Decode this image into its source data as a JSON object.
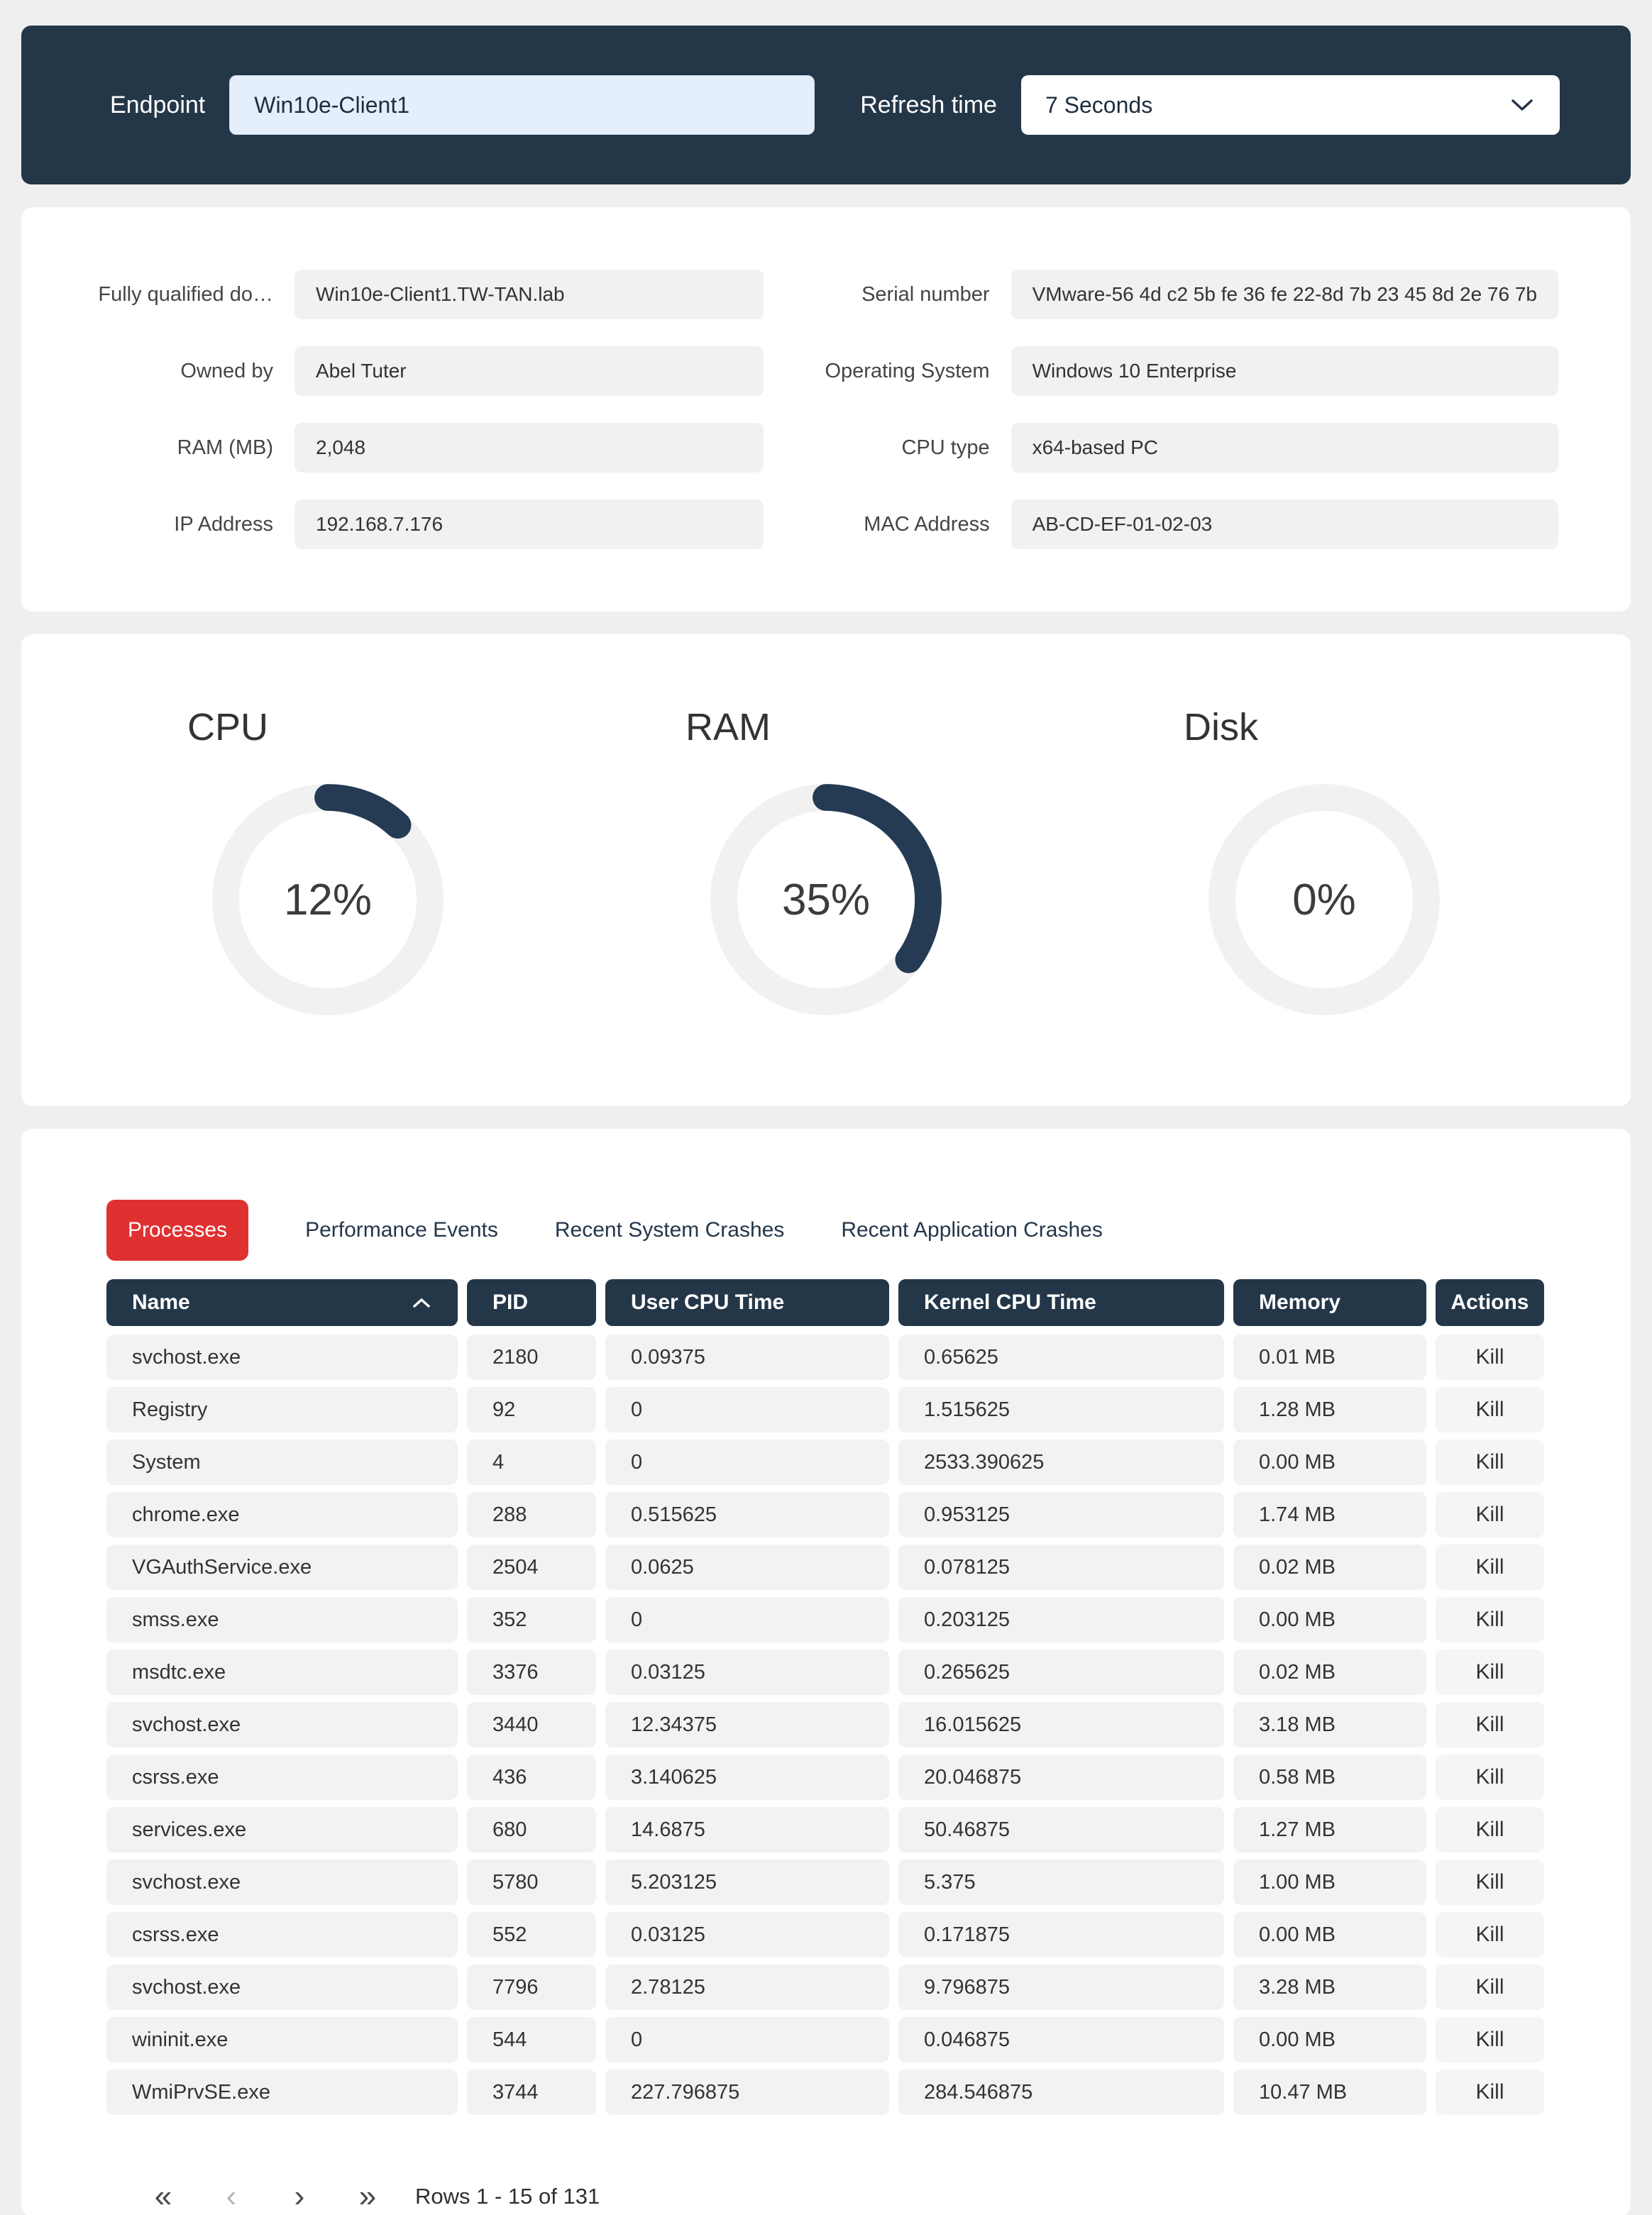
{
  "colors": {
    "navy": "#243748",
    "red_accent": "#E03131",
    "page_bg": "#EFEFEF",
    "card_bg": "#FFFFFF",
    "cell_bg": "#F2F2F2",
    "input_bg": "#E5EEFB",
    "gauge_arc": "#243B53",
    "gauge_track": "#F1F1F1"
  },
  "topbar": {
    "endpoint_label": "Endpoint",
    "endpoint_value": "Win10e-Client1",
    "refresh_label": "Refresh time",
    "refresh_value": "7 Seconds"
  },
  "details": {
    "fields": [
      {
        "label": "Fully qualified do…",
        "value": "Win10e-Client1.TW-TAN.lab"
      },
      {
        "label": "Serial number",
        "value": "VMware-56 4d c2 5b fe 36 fe 22-8d 7b 23 45 8d 2e 76 7b"
      },
      {
        "label": "Owned by",
        "value": "Abel Tuter"
      },
      {
        "label": "Operating System",
        "value": "Windows 10 Enterprise"
      },
      {
        "label": "RAM (MB)",
        "value": "2,048"
      },
      {
        "label": "CPU type",
        "value": "x64-based PC"
      },
      {
        "label": "IP Address",
        "value": "192.168.7.176"
      },
      {
        "label": "MAC Address",
        "value": "AB-CD-EF-01-02-03"
      }
    ]
  },
  "gauges": [
    {
      "title": "CPU",
      "percent": 12,
      "label": "12%"
    },
    {
      "title": "RAM",
      "percent": 35,
      "label": "35%"
    },
    {
      "title": "Disk",
      "percent": 0,
      "label": "0%"
    }
  ],
  "tabs": [
    {
      "label": "Processes",
      "active": true
    },
    {
      "label": "Performance Events",
      "active": false
    },
    {
      "label": "Recent System Crashes",
      "active": false
    },
    {
      "label": "Recent Application Crashes",
      "active": false
    }
  ],
  "table": {
    "columns": [
      "Name",
      "PID",
      "User CPU Time",
      "Kernel CPU Time",
      "Memory",
      "Actions"
    ],
    "sort_column": "Name",
    "sort_direction": "ascending",
    "kill_label": "Kill",
    "rows": [
      {
        "name": "svchost.exe",
        "pid": "2180",
        "user_cpu": "0.09375",
        "kernel_cpu": "0.65625",
        "memory": "0.01 MB"
      },
      {
        "name": "Registry",
        "pid": "92",
        "user_cpu": "0",
        "kernel_cpu": "1.515625",
        "memory": "1.28 MB"
      },
      {
        "name": "System",
        "pid": "4",
        "user_cpu": "0",
        "kernel_cpu": "2533.390625",
        "memory": "0.00 MB"
      },
      {
        "name": "chrome.exe",
        "pid": "288",
        "user_cpu": "0.515625",
        "kernel_cpu": "0.953125",
        "memory": "1.74 MB"
      },
      {
        "name": "VGAuthService.exe",
        "pid": "2504",
        "user_cpu": "0.0625",
        "kernel_cpu": "0.078125",
        "memory": "0.02 MB"
      },
      {
        "name": "smss.exe",
        "pid": "352",
        "user_cpu": "0",
        "kernel_cpu": "0.203125",
        "memory": "0.00 MB"
      },
      {
        "name": "msdtc.exe",
        "pid": "3376",
        "user_cpu": "0.03125",
        "kernel_cpu": "0.265625",
        "memory": "0.02 MB"
      },
      {
        "name": "svchost.exe",
        "pid": "3440",
        "user_cpu": "12.34375",
        "kernel_cpu": "16.015625",
        "memory": "3.18 MB"
      },
      {
        "name": "csrss.exe",
        "pid": "436",
        "user_cpu": "3.140625",
        "kernel_cpu": "20.046875",
        "memory": "0.58 MB"
      },
      {
        "name": "services.exe",
        "pid": "680",
        "user_cpu": "14.6875",
        "kernel_cpu": "50.46875",
        "memory": "1.27 MB"
      },
      {
        "name": "svchost.exe",
        "pid": "5780",
        "user_cpu": "5.203125",
        "kernel_cpu": "5.375",
        "memory": "1.00 MB"
      },
      {
        "name": "csrss.exe",
        "pid": "552",
        "user_cpu": "0.03125",
        "kernel_cpu": "0.171875",
        "memory": "0.00 MB"
      },
      {
        "name": "svchost.exe",
        "pid": "7796",
        "user_cpu": "2.78125",
        "kernel_cpu": "9.796875",
        "memory": "3.28 MB"
      },
      {
        "name": "wininit.exe",
        "pid": "544",
        "user_cpu": "0",
        "kernel_cpu": "0.046875",
        "memory": "0.00 MB"
      },
      {
        "name": "WmiPrvSE.exe",
        "pid": "3744",
        "user_cpu": "227.796875",
        "kernel_cpu": "284.546875",
        "memory": "10.47 MB"
      }
    ]
  },
  "pagination": {
    "first": "«",
    "prev": "‹",
    "next": "›",
    "last": "»",
    "summary": "Rows 1 - 15 of 131"
  }
}
